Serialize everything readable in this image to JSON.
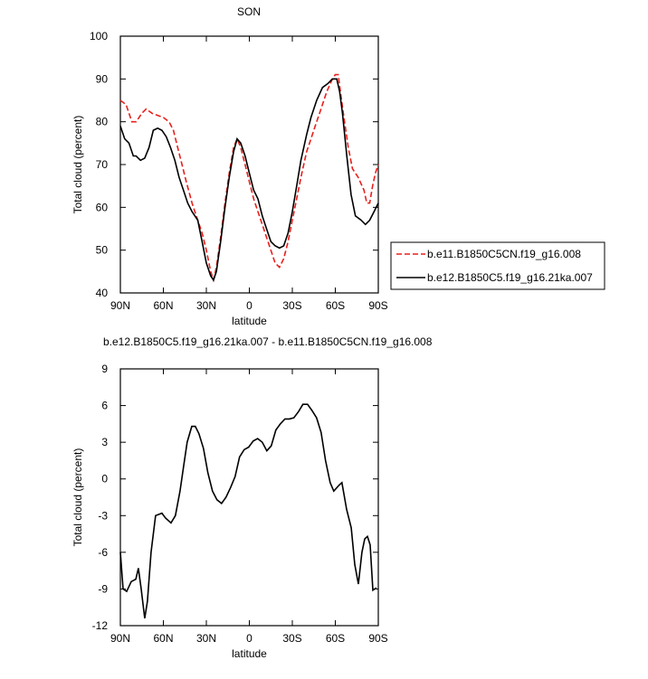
{
  "chart_data": [
    {
      "type": "line",
      "title": "SON",
      "xlabel": "latitude",
      "ylabel": "Total cloud (percent)",
      "xlim": [
        90,
        -90
      ],
      "xticks": [
        {
          "value": 90,
          "label": "90N"
        },
        {
          "value": 60,
          "label": "60N"
        },
        {
          "value": 30,
          "label": "30N"
        },
        0,
        {
          "value": -30,
          "label": "30S"
        },
        {
          "value": -60,
          "label": "60S"
        },
        {
          "value": -90,
          "label": "90S"
        }
      ],
      "ylim": [
        40,
        100
      ],
      "yticks": [
        40,
        50,
        60,
        70,
        80,
        90,
        100
      ],
      "series": [
        {
          "name": "b.e11.B1850C5CN.f19_g16.008",
          "color": "#e8201c",
          "dash": "dashed",
          "x": [
            90,
            86,
            82,
            79,
            75,
            72,
            68,
            64,
            60,
            56,
            53,
            50,
            47,
            44,
            40,
            36,
            33,
            30,
            27,
            25,
            23,
            20,
            17,
            14,
            11,
            8.5,
            6,
            3,
            0,
            -3,
            -6,
            -9,
            -12,
            -15,
            -18,
            -21,
            -24,
            -27,
            -30,
            -33,
            -36,
            -40,
            -43,
            -46,
            -50,
            -54,
            -58,
            -60,
            -62,
            -64,
            -66,
            -69,
            -72,
            -76,
            -80,
            -82,
            -84,
            -86,
            -88,
            -90
          ],
          "values": [
            85,
            84,
            80,
            80,
            82,
            83,
            82,
            81.5,
            81,
            80,
            78,
            74,
            70,
            66,
            61,
            57,
            54,
            50,
            45,
            43,
            46,
            53,
            61,
            68,
            74,
            76,
            74,
            70,
            66,
            62,
            59,
            56,
            53,
            50,
            47,
            46,
            48,
            52,
            57,
            62,
            67,
            73,
            76,
            79,
            83,
            87,
            90,
            91,
            91,
            86,
            81,
            74,
            69,
            67,
            64,
            61,
            61,
            65,
            68,
            70
          ]
        },
        {
          "name": "b.e12.B1850C5.f19_g16.21ka.007",
          "color": "#000000",
          "dash": "solid",
          "x": [
            90,
            87,
            84,
            81,
            79,
            76,
            73,
            70,
            67,
            64,
            61,
            58,
            55,
            52,
            49,
            46,
            43,
            40,
            36,
            33,
            30,
            27,
            25,
            23,
            20,
            17,
            14,
            11,
            8.5,
            6,
            3,
            0,
            -3,
            -6,
            -9,
            -12,
            -15,
            -18,
            -21,
            -24,
            -27,
            -30,
            -33,
            -36,
            -40,
            -43,
            -47,
            -51,
            -55,
            -58,
            -61,
            -63,
            -65,
            -68,
            -71,
            -74,
            -78,
            -81,
            -84,
            -87,
            -90
          ],
          "values": [
            79,
            76,
            75,
            72,
            72,
            71,
            71.5,
            74,
            78,
            78.5,
            78,
            76.5,
            74,
            71,
            67,
            64,
            61,
            59,
            57,
            52,
            47,
            44,
            43,
            45,
            52,
            60,
            67,
            73,
            76,
            75,
            72,
            68,
            64,
            62,
            58,
            55,
            52,
            51,
            50.5,
            51,
            54,
            59,
            65,
            71,
            77,
            81,
            85,
            88,
            89,
            90,
            90,
            87,
            82,
            72,
            63,
            58,
            57,
            56,
            57,
            59,
            61
          ]
        }
      ]
    },
    {
      "type": "line",
      "title": "b.e12.B1850C5.f19_g16.21ka.007 - b.e11.B1850C5CN.f19_g16.008",
      "xlabel": "latitude",
      "ylabel": "Total cloud (percent)",
      "xlim": [
        90,
        -90
      ],
      "xticks": [
        {
          "value": 90,
          "label": "90N"
        },
        {
          "value": 60,
          "label": "60N"
        },
        {
          "value": 30,
          "label": "30N"
        },
        0,
        {
          "value": -30,
          "label": "30S"
        },
        {
          "value": -60,
          "label": "60S"
        },
        {
          "value": -90,
          "label": "90S"
        }
      ],
      "ylim": [
        -12,
        9
      ],
      "yticks": [
        -12,
        -9,
        -6,
        -3,
        0,
        3,
        6,
        9
      ],
      "color": "#000000",
      "x": [
        90,
        88.1,
        85.6,
        82.4,
        79.2,
        77.4,
        75.5,
        73,
        71.1,
        68.6,
        65.4,
        61,
        58.5,
        54.7,
        51.6,
        48.4,
        45.9,
        43.4,
        40.2,
        37.7,
        35.2,
        32,
        28.9,
        25.7,
        22.6,
        19.4,
        16.3,
        13.1,
        9.9,
        6.8,
        3.6,
        0.5,
        -2.7,
        -5.8,
        -9,
        -12.2,
        -15.3,
        -18.5,
        -21.6,
        -24.8,
        -27.9,
        -31.1,
        -34.3,
        -37.4,
        -40.6,
        -43.7,
        -46.9,
        -50.1,
        -53.2,
        -56.4,
        -58.9,
        -62.7,
        -64.6,
        -67.9,
        -71.1,
        -73.6,
        -76.1,
        -78.6,
        -80.5,
        -82.4,
        -84.3,
        -86.2,
        -88.7
      ],
      "values": [
        -6,
        -9,
        -9.2,
        -8.4,
        -8.2,
        -7.3,
        -9,
        -11.4,
        -10,
        -6,
        -3,
        -2.8,
        -3.2,
        -3.6,
        -3,
        -1,
        1,
        3,
        4.3,
        4.3,
        3.7,
        2.5,
        0.5,
        -1,
        -1.7,
        -2,
        -1.5,
        -0.7,
        0.2,
        1.8,
        2.4,
        2.6,
        3.1,
        3.3,
        3,
        2.3,
        2.7,
        4,
        4.5,
        4.9,
        4.9,
        5,
        5.5,
        6.1,
        6.1,
        5.6,
        5,
        3.8,
        1.5,
        -0.3,
        -1,
        -0.5,
        -0.3,
        -2.5,
        -4,
        -7,
        -8.6,
        -6,
        -4.9,
        -4.7,
        -5.4,
        -9.1,
        -8.9
      ]
    }
  ]
}
